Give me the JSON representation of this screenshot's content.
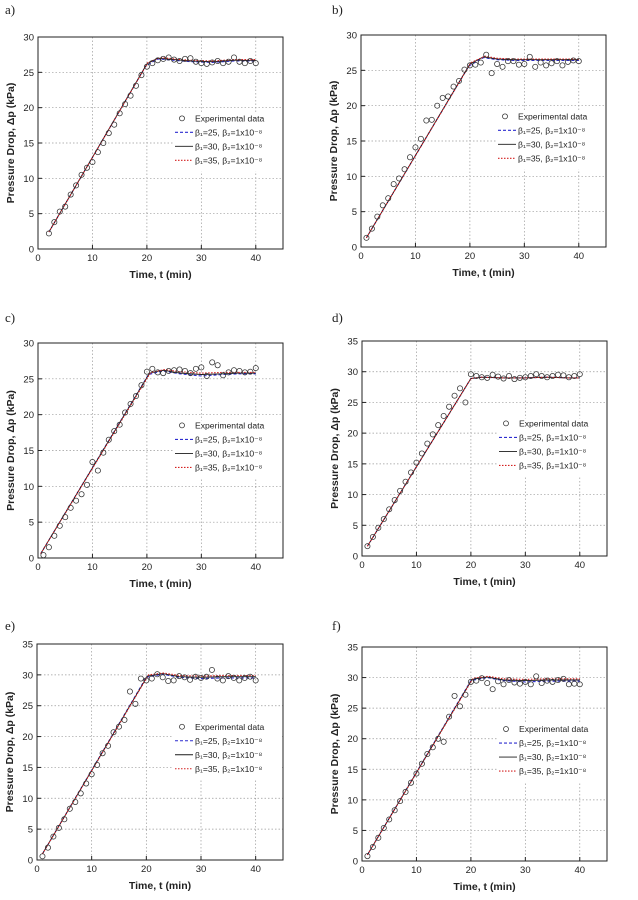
{
  "figure": {
    "panel_labels": [
      "a)",
      "b)",
      "c)",
      "d)",
      "e)",
      "f)"
    ]
  },
  "legend": {
    "experimental": "Experimental data",
    "fits": [
      "β₁=25, β₂=1x10⁻⁸",
      "β₁=30, β₂=1x10⁻⁸",
      "β₁=35, β₂=1x10⁻⁸"
    ]
  },
  "colors": {
    "experimental": "#333333",
    "beta25": "#2d2dcf",
    "beta30": "#1a1a1a",
    "beta35": "#d42020",
    "grid": "#9a9a9a"
  },
  "chart_data": [
    {
      "panel": "a)",
      "type": "scatter+line",
      "xlabel": "Time, t (min)",
      "ylabel": "Pressure Drop, Δp (kPa)",
      "xlim": [
        0,
        45
      ],
      "ylim": [
        0,
        30
      ],
      "xticks": [
        0,
        10,
        20,
        30,
        40
      ],
      "yticks": [
        0,
        5,
        10,
        15,
        20,
        25,
        30
      ],
      "legend_position": "right-middle",
      "experimental": {
        "x": [
          2,
          3,
          4,
          5,
          6,
          7,
          8,
          9,
          10,
          11,
          12,
          13,
          14,
          15,
          16,
          17,
          18,
          19,
          20,
          21,
          22,
          23,
          24,
          25,
          26,
          27,
          28,
          29,
          30,
          31,
          32,
          33,
          34,
          35,
          36,
          37,
          38,
          39,
          40
        ],
        "y": [
          2.2,
          3.8,
          5.3,
          6.0,
          7.7,
          9.0,
          10.5,
          11.5,
          12.3,
          13.7,
          15.0,
          16.4,
          17.6,
          19.2,
          20.5,
          21.7,
          23.1,
          24.6,
          25.8,
          26.3,
          26.7,
          26.9,
          27.1,
          26.8,
          26.6,
          26.9,
          27.0,
          26.5,
          26.3,
          26.2,
          26.4,
          26.6,
          26.3,
          26.5,
          27.1,
          26.5,
          26.3,
          26.6,
          26.3
        ]
      },
      "fits": [
        {
          "name": "β₁=25, β₂=1x10⁻⁸",
          "x": [
            2,
            19.8,
            22,
            25,
            28,
            32,
            36,
            40
          ],
          "y": [
            2.4,
            25.9,
            26.9,
            26.7,
            26.5,
            26.4,
            26.6,
            26.6
          ]
        },
        {
          "name": "β₁=30, β₂=1x10⁻⁸",
          "x": [
            2,
            20,
            22,
            25,
            28,
            32,
            36,
            40
          ],
          "y": [
            2.4,
            26.2,
            27.0,
            26.8,
            26.6,
            26.5,
            26.7,
            26.7
          ]
        },
        {
          "name": "β₁=35, β₂=1x10⁻⁸",
          "x": [
            2,
            20.2,
            22.5,
            25,
            28,
            32,
            36,
            40
          ],
          "y": [
            2.4,
            26.4,
            27.1,
            26.9,
            26.7,
            26.6,
            26.8,
            26.8
          ]
        }
      ]
    },
    {
      "panel": "b)",
      "type": "scatter+line",
      "xlabel": "Time, t (min)",
      "ylabel": "Pressure Drop, Δp (kPa)",
      "xlim": [
        0,
        45
      ],
      "ylim": [
        0,
        30
      ],
      "xticks": [
        0,
        10,
        20,
        30,
        40
      ],
      "yticks": [
        0,
        5,
        10,
        15,
        20,
        25,
        30
      ],
      "legend_position": "right-middle",
      "experimental": {
        "x": [
          1,
          2,
          3,
          4,
          5,
          6,
          7,
          8,
          9,
          10,
          11,
          12,
          13,
          14,
          15,
          16,
          17,
          18,
          19,
          20,
          21,
          22,
          23,
          24,
          25,
          26,
          27,
          28,
          29,
          30,
          31,
          32,
          33,
          34,
          35,
          36,
          37,
          38,
          39,
          40
        ],
        "y": [
          1.3,
          2.6,
          4.3,
          5.9,
          6.9,
          8.9,
          9.7,
          11.0,
          12.7,
          14.1,
          15.3,
          17.9,
          18.0,
          20.0,
          21.1,
          21.3,
          22.7,
          23.5,
          25.1,
          25.7,
          25.8,
          26.1,
          27.2,
          24.6,
          25.9,
          25.5,
          26.3,
          26.3,
          25.8,
          25.9,
          26.9,
          25.5,
          26.1,
          25.7,
          26.0,
          26.3,
          25.7,
          26.2,
          26.4,
          26.3
        ]
      },
      "fits": [
        {
          "name": "β₁=25, β₂=1x10⁻⁸",
          "x": [
            1,
            19.8,
            22.5,
            25,
            28,
            32,
            36,
            40
          ],
          "y": [
            1.3,
            25.6,
            26.8,
            26.5,
            26.4,
            26.4,
            26.4,
            26.4
          ]
        },
        {
          "name": "β₁=30, β₂=1x10⁻⁸",
          "x": [
            1,
            20,
            22.5,
            25,
            28,
            32,
            36,
            40
          ],
          "y": [
            1.3,
            25.9,
            26.9,
            26.6,
            26.5,
            26.5,
            26.5,
            26.5
          ]
        },
        {
          "name": "β₁=35, β₂=1x10⁻⁸",
          "x": [
            1,
            20.2,
            22.8,
            25,
            28,
            32,
            36,
            40
          ],
          "y": [
            1.3,
            26.1,
            27.0,
            26.7,
            26.6,
            26.6,
            26.6,
            26.6
          ]
        }
      ]
    },
    {
      "panel": "c)",
      "type": "scatter+line",
      "xlabel": "Time, t (min)",
      "ylabel": "Pressure Drop, Δp (kPa)",
      "xlim": [
        0,
        45
      ],
      "ylim": [
        0,
        30
      ],
      "xticks": [
        0,
        10,
        20,
        30,
        40
      ],
      "yticks": [
        0,
        5,
        10,
        15,
        20,
        25,
        30
      ],
      "legend_position": "right-middle",
      "experimental": {
        "x": [
          1,
          2,
          3,
          4,
          5,
          6,
          7,
          8,
          9,
          10,
          11,
          12,
          13,
          14,
          15,
          16,
          17,
          18,
          19,
          20,
          21,
          22,
          23,
          24,
          25,
          26,
          27,
          28,
          29,
          30,
          31,
          32,
          33,
          34,
          35,
          36,
          37,
          38,
          39,
          40
        ],
        "y": [
          0.4,
          1.5,
          3.1,
          4.5,
          5.7,
          7.0,
          8.0,
          8.9,
          10.2,
          13.4,
          12.2,
          14.7,
          16.5,
          17.7,
          18.6,
          20.3,
          21.5,
          22.6,
          24.1,
          26.0,
          26.4,
          25.9,
          25.8,
          26.1,
          26.2,
          26.3,
          26.1,
          25.8,
          26.4,
          26.6,
          25.4,
          27.3,
          26.9,
          25.5,
          25.9,
          26.2,
          26.1,
          25.9,
          26.0,
          26.5
        ]
      },
      "fits": [
        {
          "name": "β₁=25, β₂=1x10⁻⁸",
          "x": [
            0.5,
            20.3,
            23,
            26,
            30,
            34,
            37,
            40
          ],
          "y": [
            0.6,
            25.6,
            26.1,
            25.7,
            25.4,
            25.6,
            25.7,
            25.7
          ]
        },
        {
          "name": "β₁=30, β₂=1x10⁻⁸",
          "x": [
            0.5,
            20.5,
            23,
            26,
            30,
            34,
            37,
            40
          ],
          "y": [
            0.6,
            25.8,
            26.2,
            25.8,
            25.6,
            25.7,
            25.8,
            25.8
          ]
        },
        {
          "name": "β₁=35, β₂=1x10⁻⁸",
          "x": [
            0.5,
            20.7,
            23.3,
            26,
            30,
            34,
            37,
            40
          ],
          "y": [
            0.6,
            25.9,
            26.3,
            26.0,
            25.8,
            25.9,
            25.9,
            25.9
          ]
        }
      ]
    },
    {
      "panel": "d)",
      "type": "scatter+line",
      "xlabel": "Time, t (min)",
      "ylabel": "Pressure Drop, Δp (kPa)",
      "xlim": [
        0,
        45
      ],
      "ylim": [
        0,
        35
      ],
      "xticks": [
        0,
        10,
        20,
        30,
        40
      ],
      "yticks": [
        0,
        5,
        10,
        15,
        20,
        25,
        30,
        35
      ],
      "legend_position": "right-middle",
      "experimental": {
        "x": [
          1,
          2,
          3,
          4,
          5,
          6,
          7,
          8,
          9,
          10,
          11,
          12,
          13,
          14,
          15,
          16,
          17,
          18,
          19,
          20,
          21,
          22,
          23,
          24,
          25,
          26,
          27,
          28,
          29,
          30,
          31,
          32,
          33,
          34,
          35,
          36,
          37,
          38,
          39,
          40
        ],
        "y": [
          1.6,
          3.1,
          4.6,
          6.0,
          7.6,
          9.1,
          10.6,
          12.1,
          13.6,
          15.2,
          16.7,
          18.3,
          19.8,
          21.3,
          22.8,
          24.3,
          26.1,
          27.3,
          25.0,
          29.6,
          29.3,
          29.1,
          29.0,
          29.5,
          29.2,
          28.9,
          29.3,
          28.8,
          29.0,
          29.1,
          29.3,
          29.6,
          29.3,
          29.1,
          29.3,
          29.5,
          29.4,
          29.1,
          29.3,
          29.6
        ]
      },
      "fits": [
        {
          "name": "β₁=25, β₂=1x10⁻⁸",
          "x": [
            1,
            20,
            22,
            26,
            30,
            34,
            38,
            40
          ],
          "y": [
            1.6,
            28.9,
            29.1,
            29.0,
            29.0,
            29.1,
            29.0,
            29.0
          ]
        },
        {
          "name": "β₁=30, β₂=1x10⁻⁸",
          "x": [
            1,
            20,
            22,
            26,
            30,
            34,
            38,
            40
          ],
          "y": [
            1.6,
            28.9,
            29.1,
            29.0,
            29.0,
            29.1,
            29.0,
            29.0
          ]
        },
        {
          "name": "β₁=35, β₂=1x10⁻⁸",
          "x": [
            1,
            20,
            22,
            26,
            30,
            34,
            38,
            40
          ],
          "y": [
            1.6,
            28.9,
            29.1,
            29.0,
            29.0,
            29.1,
            29.0,
            29.0
          ]
        }
      ]
    },
    {
      "panel": "e)",
      "type": "scatter+line",
      "xlabel": "Time, t (min)",
      "ylabel": "Pressure Drop, Δp (kPa)",
      "xlim": [
        0,
        45
      ],
      "ylim": [
        0,
        35
      ],
      "xticks": [
        0,
        10,
        20,
        30,
        40
      ],
      "yticks": [
        0,
        5,
        10,
        15,
        20,
        25,
        30,
        35
      ],
      "legend_position": "right-middle",
      "experimental": {
        "x": [
          1,
          2,
          3,
          4,
          5,
          6,
          7,
          8,
          9,
          10,
          11,
          12,
          13,
          14,
          15,
          16,
          17,
          18,
          19,
          20,
          21,
          22,
          23,
          24,
          25,
          26,
          27,
          28,
          29,
          30,
          31,
          32,
          33,
          34,
          35,
          36,
          37,
          38,
          39,
          40
        ],
        "y": [
          0.6,
          2.0,
          3.8,
          5.2,
          6.6,
          8.3,
          9.4,
          10.8,
          12.4,
          13.9,
          15.4,
          17.3,
          18.5,
          20.7,
          21.6,
          22.7,
          27.3,
          25.3,
          29.4,
          29.1,
          29.4,
          30.1,
          29.6,
          29.0,
          29.1,
          29.8,
          29.6,
          29.2,
          29.7,
          29.5,
          29.7,
          30.8,
          29.4,
          29.1,
          29.8,
          29.5,
          29.1,
          29.5,
          29.7,
          29.1
        ]
      },
      "fits": [
        {
          "name": "β₁=25, β₂=1x10⁻⁸",
          "x": [
            1,
            20,
            23,
            26,
            30,
            34,
            38,
            40
          ],
          "y": [
            1.0,
            29.6,
            30.1,
            29.6,
            29.4,
            29.5,
            29.5,
            29.5
          ]
        },
        {
          "name": "β₁=30, β₂=1x10⁻⁸",
          "x": [
            1,
            20.2,
            23,
            26,
            30,
            34,
            38,
            40
          ],
          "y": [
            1.0,
            29.8,
            30.2,
            29.7,
            29.6,
            29.7,
            29.7,
            29.7
          ]
        },
        {
          "name": "β₁=35, β₂=1x10⁻⁸",
          "x": [
            1,
            20.4,
            23.2,
            26,
            30,
            34,
            38,
            40
          ],
          "y": [
            1.0,
            30.0,
            30.3,
            29.9,
            29.8,
            29.9,
            29.9,
            29.9
          ]
        }
      ]
    },
    {
      "panel": "f)",
      "type": "scatter+line",
      "xlabel": "Time, t (min)",
      "ylabel": "Pressure Drop, Δp (kPa)",
      "xlim": [
        0,
        45
      ],
      "ylim": [
        0,
        35
      ],
      "xticks": [
        0,
        10,
        20,
        30,
        40
      ],
      "yticks": [
        0,
        5,
        10,
        15,
        20,
        25,
        30,
        35
      ],
      "legend_position": "right-middle",
      "experimental": {
        "x": [
          1,
          2,
          3,
          4,
          5,
          6,
          7,
          8,
          9,
          10,
          11,
          12,
          13,
          14,
          15,
          16,
          17,
          18,
          19,
          20,
          21,
          22,
          23,
          24,
          25,
          26,
          27,
          28,
          29,
          30,
          31,
          32,
          33,
          34,
          35,
          36,
          37,
          38,
          39,
          40
        ],
        "y": [
          0.8,
          2.3,
          3.8,
          5.4,
          6.8,
          8.3,
          9.8,
          11.3,
          12.8,
          14.3,
          15.9,
          17.5,
          18.6,
          20.0,
          19.5,
          23.6,
          27.0,
          25.3,
          27.2,
          29.3,
          29.5,
          29.9,
          29.1,
          28.1,
          29.4,
          28.9,
          29.6,
          29.2,
          29.0,
          29.3,
          28.9,
          30.2,
          29.1,
          29.5,
          29.3,
          29.6,
          29.8,
          28.9,
          29.0,
          28.9
        ]
      },
      "fits": [
        {
          "name": "β₁=25, β₂=1x10⁻⁸",
          "x": [
            1,
            20,
            23,
            26,
            30,
            34,
            38,
            40
          ],
          "y": [
            1.0,
            29.5,
            30.0,
            29.5,
            29.3,
            29.4,
            29.4,
            29.4
          ]
        },
        {
          "name": "β₁=30, β₂=1x10⁻⁸",
          "x": [
            1,
            20.2,
            23,
            26,
            30,
            34,
            38,
            40
          ],
          "y": [
            1.0,
            29.7,
            30.1,
            29.6,
            29.5,
            29.6,
            29.6,
            29.6
          ]
        },
        {
          "name": "β₁=35, β₂=1x10⁻⁸",
          "x": [
            1,
            20.4,
            23.2,
            26,
            30,
            34,
            38,
            40
          ],
          "y": [
            1.0,
            29.9,
            30.2,
            29.8,
            29.7,
            29.8,
            29.8,
            29.8
          ]
        }
      ]
    }
  ]
}
